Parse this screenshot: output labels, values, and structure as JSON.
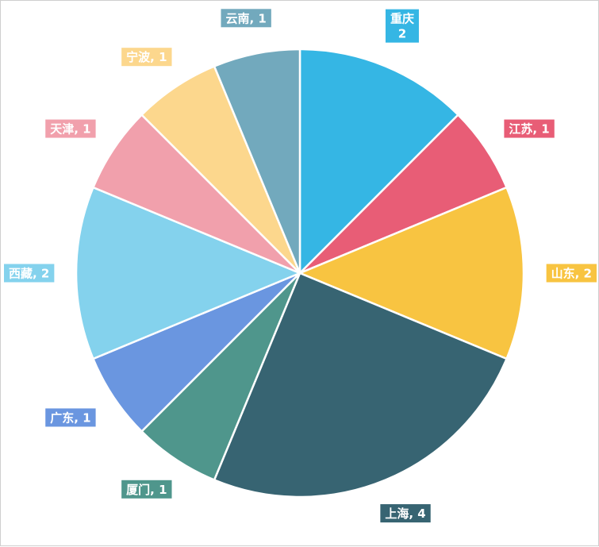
{
  "chart_data": {
    "type": "pie",
    "title": "",
    "start_angle_deg": 90,
    "direction": "clockwise",
    "slices": [
      {
        "label": "重庆",
        "value": 2,
        "color": "#35b6e4",
        "label_lines": [
          "重庆",
          "2"
        ]
      },
      {
        "label": "江苏",
        "value": 1,
        "color": "#e85d76",
        "label_lines": [
          "江苏, 1"
        ]
      },
      {
        "label": "山东",
        "value": 2,
        "color": "#f8c441",
        "label_lines": [
          "山东, 2"
        ]
      },
      {
        "label": "上海",
        "value": 4,
        "color": "#376472",
        "label_lines": [
          "上海, 4"
        ]
      },
      {
        "label": "厦门",
        "value": 1,
        "color": "#4f968c",
        "label_lines": [
          "厦门, 1"
        ]
      },
      {
        "label": "广东",
        "value": 1,
        "color": "#6a96e0",
        "label_lines": [
          "广东, 1"
        ]
      },
      {
        "label": "西藏",
        "value": 2,
        "color": "#84d2ed",
        "label_lines": [
          "西藏, 2"
        ]
      },
      {
        "label": "天津",
        "value": 1,
        "color": "#f1a0ac",
        "label_lines": [
          "天津, 1"
        ]
      },
      {
        "label": "宁波",
        "value": 1,
        "color": "#fcd78d",
        "label_lines": [
          "宁波, 1"
        ]
      },
      {
        "label": "云南",
        "value": 1,
        "color": "#72a9bd",
        "label_lines": [
          "云南, 1"
        ]
      }
    ]
  }
}
